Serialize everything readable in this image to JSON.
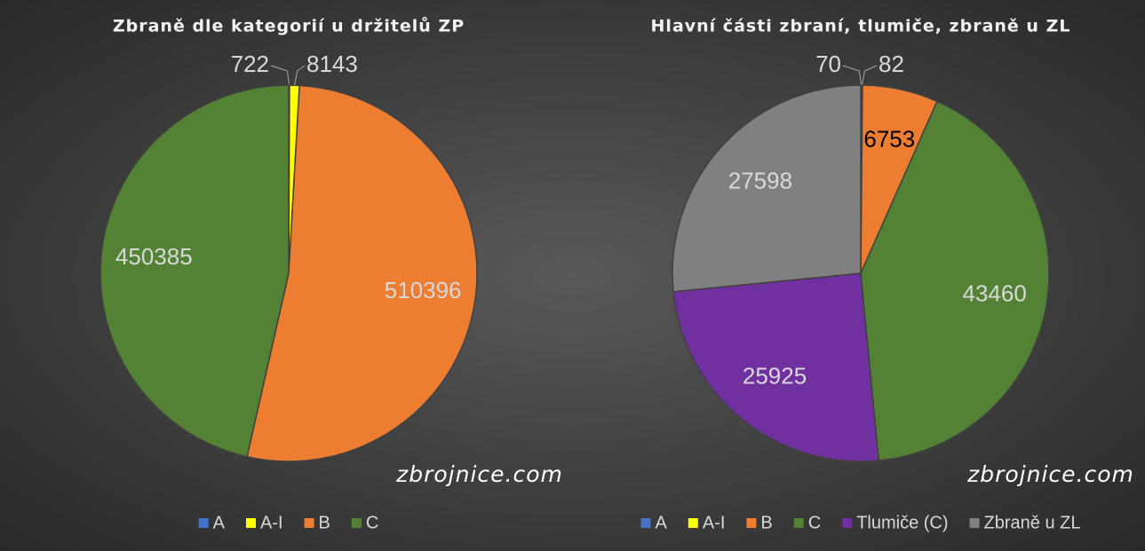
{
  "chart_data": [
    {
      "type": "pie",
      "title": "Zbraně dle kategorií u držitelů ZP",
      "watermark": "zbrojnice.com",
      "categories": [
        "A",
        "A-I",
        "B",
        "C"
      ],
      "values": [
        722,
        8143,
        510396,
        450385
      ],
      "colors": [
        "#4472c4",
        "#ffff00",
        "#ed7d31",
        "#548235"
      ],
      "label_colors": [
        "#d9d9d9",
        "#d9d9d9",
        "#d9d9d9",
        "#d9d9d9"
      ]
    },
    {
      "type": "pie",
      "title": "Hlavní části zbraní, tlumiče, zbraně u ZL",
      "watermark": "zbrojnice.com",
      "categories": [
        "A",
        "A-I",
        "B",
        "C",
        "Tlumiče (C)",
        "Zbraně u ZL"
      ],
      "values": [
        70,
        82,
        6753,
        43460,
        25925,
        27598
      ],
      "colors": [
        "#4472c4",
        "#ffff00",
        "#ed7d31",
        "#548235",
        "#7030a0",
        "#808080"
      ],
      "label_colors": [
        "#d9d9d9",
        "#d9d9d9",
        "#000000",
        "#d9d9d9",
        "#d9d9d9",
        "#d9d9d9"
      ]
    }
  ]
}
